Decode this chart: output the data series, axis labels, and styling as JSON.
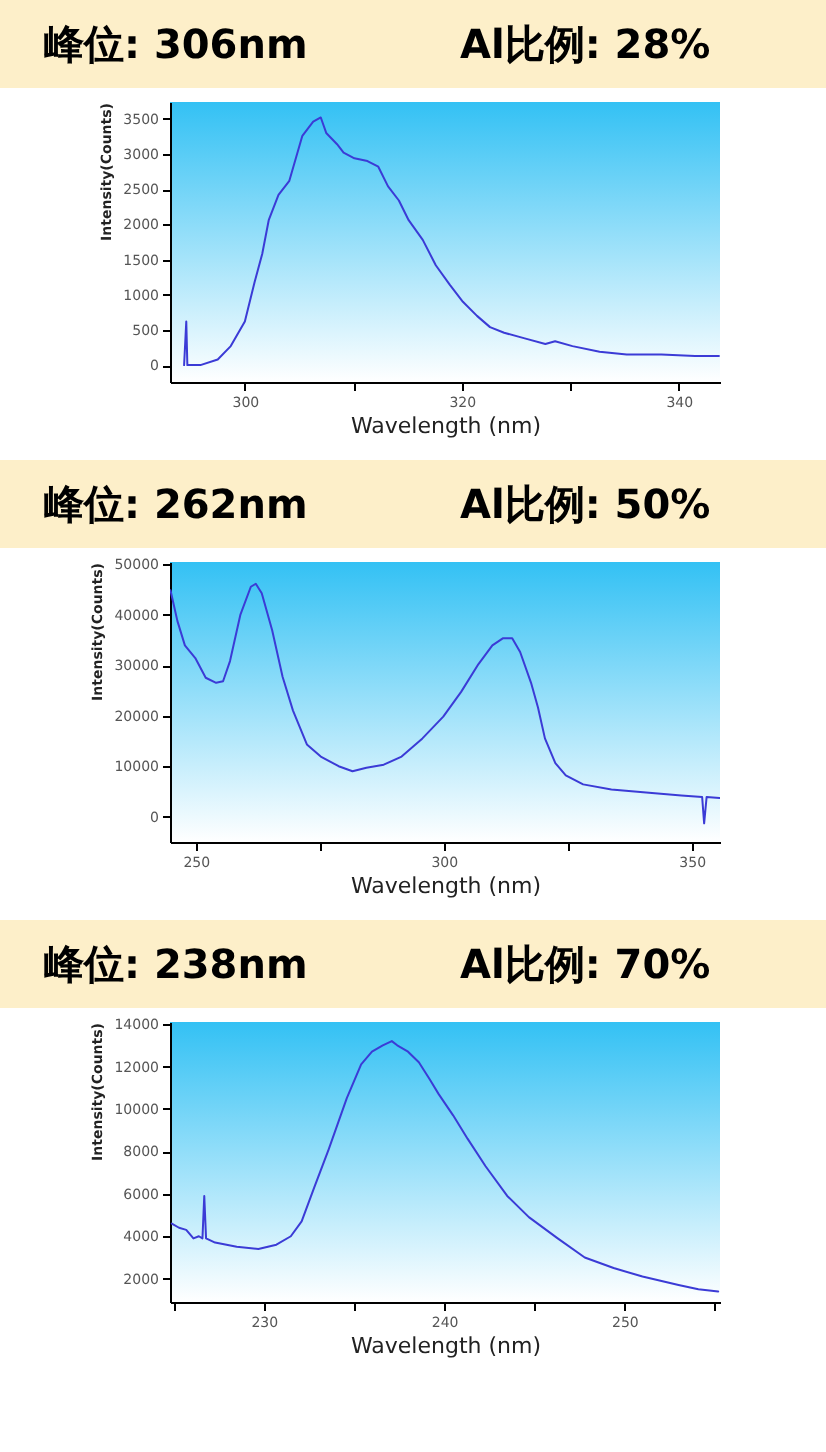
{
  "chart_data": [
    {
      "type": "line",
      "title": "峰位: 306nm",
      "subtitle": "Al比例: 28%",
      "xlabel": "Wavelength (nm)",
      "ylabel": "Intensity(Counts)",
      "x": [
        294.4,
        294.6,
        294.7,
        295.9,
        297.5,
        298.7,
        300.0,
        300.9,
        301.6,
        302.2,
        303.1,
        304.1,
        304.7,
        305.3,
        306.3,
        307.0,
        307.5,
        308.5,
        309.1,
        310.1,
        311.3,
        312.3,
        313.2,
        314.2,
        315.1,
        316.4,
        317.6,
        318.9,
        320.1,
        321.4,
        322.6,
        323.9,
        325.8,
        327.7,
        328.6,
        330.2,
        332.7,
        335.2,
        338.4,
        341.5,
        343.7
      ],
      "series": [
        {
          "color": "#3b3bd6",
          "values": [
            0,
            620,
            0,
            0,
            80,
            270,
            620,
            1180,
            1580,
            2060,
            2420,
            2620,
            2940,
            3260,
            3460,
            3520,
            3300,
            3140,
            3020,
            2940,
            2900,
            2820,
            2540,
            2340,
            2060,
            1780,
            1420,
            1140,
            900,
            700,
            540,
            460,
            380,
            300,
            340,
            270,
            190,
            150,
            150,
            130,
            130
          ]
        }
      ],
      "xlim": [
        293.1,
        343.8
      ],
      "ylim": [
        -240,
        3740
      ],
      "xticks": [
        300,
        {
          "value": 310,
          "label": null
        },
        320,
        {
          "value": 330,
          "label": null
        },
        340
      ],
      "yticks": [
        0,
        500,
        1000,
        1500,
        2000,
        2500,
        3000,
        3500
      ]
    },
    {
      "type": "line",
      "title": "峰位: 262nm",
      "subtitle": "Al比例: 50%",
      "xlabel": "Wavelength (nm)",
      "ylabel": "Intensity(Counts)",
      "x": [
        244.9,
        246.3,
        247.8,
        249.9,
        252.0,
        254.1,
        255.5,
        256.9,
        259.0,
        261.1,
        262.1,
        263.3,
        265.4,
        267.5,
        269.6,
        272.4,
        275.2,
        278.8,
        281.6,
        284.4,
        287.9,
        291.5,
        295.7,
        299.9,
        303.5,
        307.0,
        309.8,
        311.9,
        313.8,
        315.4,
        317.6,
        319.0,
        320.4,
        322.5,
        324.6,
        328.1,
        333.8,
        340.8,
        347.9,
        352.1,
        352.5,
        353.0,
        355.6
      ],
      "series": [
        {
          "color": "#3b3bd6",
          "values": [
            44800,
            38700,
            33900,
            31400,
            27500,
            26500,
            26800,
            30800,
            40000,
            45500,
            46100,
            44200,
            36900,
            27700,
            21000,
            14300,
            11900,
            10000,
            9000,
            9700,
            10300,
            11900,
            15500,
            19800,
            24700,
            30200,
            33900,
            35300,
            35300,
            32600,
            26500,
            21600,
            15500,
            10600,
            8200,
            6400,
            5400,
            4800,
            4200,
            3900,
            -1300,
            3900,
            3700
          ]
        }
      ],
      "xlim": [
        244.8,
        355.7
      ],
      "ylim": [
        -5000,
        50400
      ],
      "xticks": [
        250,
        {
          "value": 275,
          "label": null
        },
        300,
        {
          "value": 325,
          "label": null
        },
        350
      ],
      "yticks": [
        0,
        10000,
        20000,
        30000,
        40000,
        50000
      ]
    },
    {
      "type": "line",
      "title": "峰位: 238nm",
      "subtitle": "Al比例: 70%",
      "xlabel": "Wavelength (nm)",
      "ylabel": "Intensity(Counts)",
      "x": [
        224.9,
        225.3,
        225.7,
        226.1,
        226.4,
        226.6,
        226.7,
        226.8,
        227.3,
        228.5,
        229.7,
        230.7,
        231.5,
        232.1,
        232.8,
        233.6,
        234.6,
        235.4,
        236.0,
        236.6,
        237.1,
        237.4,
        238.0,
        238.6,
        239.2,
        239.7,
        240.5,
        241.3,
        242.3,
        243.5,
        244.7,
        246.3,
        247.8,
        249.4,
        251.0,
        253.0,
        254.1,
        255.2
      ],
      "series": [
        {
          "color": "#3b3bd6",
          "values": [
            4600,
            4400,
            4300,
            3900,
            4000,
            3900,
            5900,
            3900,
            3700,
            3500,
            3400,
            3600,
            4000,
            4700,
            6300,
            8100,
            10500,
            12100,
            12700,
            13000,
            13200,
            13000,
            12700,
            12200,
            11400,
            10700,
            9700,
            8600,
            7300,
            5900,
            4900,
            3900,
            3000,
            2500,
            2100,
            1700,
            1500,
            1400
          ]
        }
      ],
      "xlim": [
        224.8,
        255.3
      ],
      "ylim": [
        900,
        14100
      ],
      "xticks": [
        {
          "value": 225,
          "label": null
        },
        230,
        {
          "value": 235,
          "label": null
        },
        240,
        {
          "value": 245,
          "label": null
        },
        250,
        {
          "value": 255,
          "label": null
        }
      ],
      "yticks": [
        2000,
        4000,
        6000,
        8000,
        10000,
        12000,
        14000
      ]
    }
  ]
}
